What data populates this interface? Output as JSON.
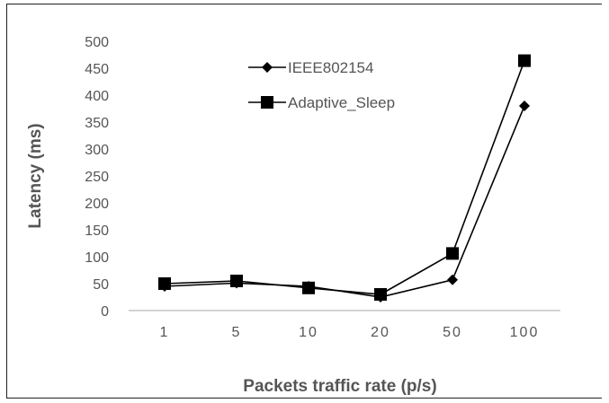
{
  "chart_data": {
    "type": "line",
    "categories": [
      "1",
      "5",
      "10",
      "20",
      "50",
      "100"
    ],
    "series": [
      {
        "name": "IEEE802154",
        "marker": "diamond",
        "values": [
          45,
          51,
          45,
          25,
          57,
          380
        ]
      },
      {
        "name": "Adaptive_Sleep",
        "marker": "square",
        "values": [
          50,
          55,
          42,
          30,
          106,
          464
        ]
      }
    ],
    "title": "",
    "xlabel": "Packets traffic rate (p/s)",
    "ylabel": "Latency (ms)",
    "ylim": [
      0,
      500
    ],
    "yticks": [
      0,
      50,
      100,
      150,
      200,
      250,
      300,
      350,
      400,
      450,
      500
    ],
    "grid": false,
    "legend_position": "top-center",
    "colors": {
      "line": "#000000",
      "text": "#555555",
      "axis": "#aaaaaa"
    }
  }
}
